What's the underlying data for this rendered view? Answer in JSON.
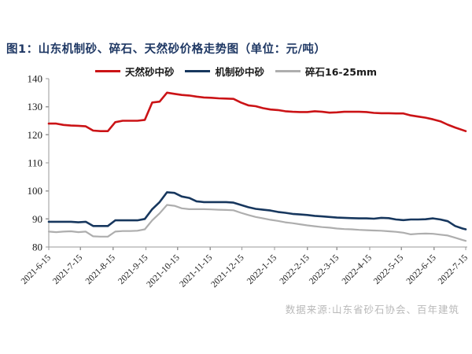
{
  "title": "图1：山东机制砂、碎石、天然砂价格走势图（单位：元/吨）",
  "source_note": "数据来源:山东省砂石协会、百年建筑",
  "colors": {
    "title_text": "#1f3864",
    "source_text": "#b9b9b9",
    "axis": "#999999",
    "tick_text": "#1a1a1a"
  },
  "chart_data": {
    "type": "line",
    "title": "图1：山东机制砂、碎石、天然砂价格走势图",
    "unit": "元/吨",
    "grid": false,
    "legend_position": "top",
    "ylim": [
      80,
      140
    ],
    "yticks": [
      80,
      90,
      100,
      110,
      120,
      130,
      140
    ],
    "xticks": [
      "2021-6-15",
      "2021-7-15",
      "2021-8-15",
      "2021-9-15",
      "2021-10-15",
      "2021-11-15",
      "2021-12-15",
      "2022-1-15",
      "2022-2-15",
      "2022-3-15",
      "2022-4-15",
      "2022-5-15",
      "2022-6-15",
      "2022-7-15"
    ],
    "x": [
      "2021-6-15",
      "2021-6-22",
      "2021-6-29",
      "2021-7-6",
      "2021-7-13",
      "2021-7-20",
      "2021-7-27",
      "2021-8-3",
      "2021-8-10",
      "2021-8-17",
      "2021-8-24",
      "2021-8-31",
      "2021-9-7",
      "2021-9-14",
      "2021-9-21",
      "2021-9-28",
      "2021-10-5",
      "2021-10-12",
      "2021-10-19",
      "2021-10-26",
      "2021-11-2",
      "2021-11-9",
      "2021-11-16",
      "2021-11-23",
      "2021-11-30",
      "2021-12-7",
      "2021-12-14",
      "2021-12-21",
      "2021-12-28",
      "2022-1-4",
      "2022-1-11",
      "2022-1-18",
      "2022-1-25",
      "2022-2-1",
      "2022-2-8",
      "2022-2-15",
      "2022-2-22",
      "2022-3-1",
      "2022-3-8",
      "2022-3-15",
      "2022-3-22",
      "2022-3-29",
      "2022-4-5",
      "2022-4-12",
      "2022-4-19",
      "2022-4-26",
      "2022-5-3",
      "2022-5-10",
      "2022-5-17",
      "2022-5-24",
      "2022-5-31",
      "2022-6-7",
      "2022-6-14",
      "2022-6-21",
      "2022-6-28",
      "2022-7-5",
      "2022-7-12",
      "2022-7-15"
    ],
    "series": [
      {
        "name": "天然砂中砂",
        "color": "#cb1316",
        "values": [
          124,
          124,
          123.5,
          123.3,
          123.2,
          123,
          121.5,
          121.3,
          121.3,
          124.5,
          125,
          125,
          125,
          125.3,
          131.5,
          131.8,
          135,
          134.6,
          134.2,
          134,
          133.6,
          133.3,
          133.2,
          133,
          132.9,
          132.8,
          131.5,
          130.5,
          130.2,
          129.5,
          129,
          128.8,
          128.4,
          128.2,
          128.1,
          128.1,
          128.4,
          128.2,
          127.9,
          128,
          128.2,
          128.2,
          128.2,
          128.1,
          127.8,
          127.7,
          127.7,
          127.6,
          127.6,
          126.9,
          126.5,
          126.1,
          125.5,
          124.8,
          123.6,
          122.6,
          121.7,
          121.3
        ]
      },
      {
        "name": "机制砂中砂",
        "color": "#17375e",
        "values": [
          89,
          89,
          89,
          89,
          88.8,
          89,
          87.5,
          87.5,
          87.5,
          89.5,
          89.5,
          89.5,
          89.5,
          90,
          93.5,
          96,
          99.5,
          99.3,
          98,
          97.5,
          96.3,
          96,
          96,
          96,
          96,
          95.8,
          95,
          94.2,
          93.6,
          93.3,
          93,
          92.5,
          92.2,
          91.8,
          91.6,
          91.4,
          91.1,
          90.9,
          90.7,
          90.5,
          90.4,
          90.3,
          90.2,
          90.2,
          90.1,
          90.4,
          90.3,
          89.8,
          89.6,
          89.8,
          89.8,
          89.9,
          90.2,
          89.8,
          89.2,
          87.5,
          86.6,
          86.3
        ]
      },
      {
        "name": "碎石16-25mm",
        "color": "#aeaeae",
        "values": [
          85.5,
          85.3,
          85.5,
          85.6,
          85.3,
          85.5,
          83.8,
          83.7,
          83.7,
          85.5,
          85.7,
          85.7,
          85.8,
          86.3,
          89.5,
          92,
          95,
          94.7,
          93.8,
          93.5,
          93.5,
          93.5,
          93.4,
          93.3,
          93.2,
          93.1,
          92.2,
          91.4,
          90.7,
          90.2,
          89.7,
          89.3,
          88.8,
          88.5,
          88.1,
          87.7,
          87.4,
          87.1,
          86.9,
          86.6,
          86.4,
          86.3,
          86.1,
          86,
          85.9,
          85.8,
          85.6,
          85.4,
          85.1,
          84.5,
          84.7,
          84.8,
          84.7,
          84.4,
          84.1,
          83.3,
          82.5,
          82.2
        ]
      }
    ]
  }
}
